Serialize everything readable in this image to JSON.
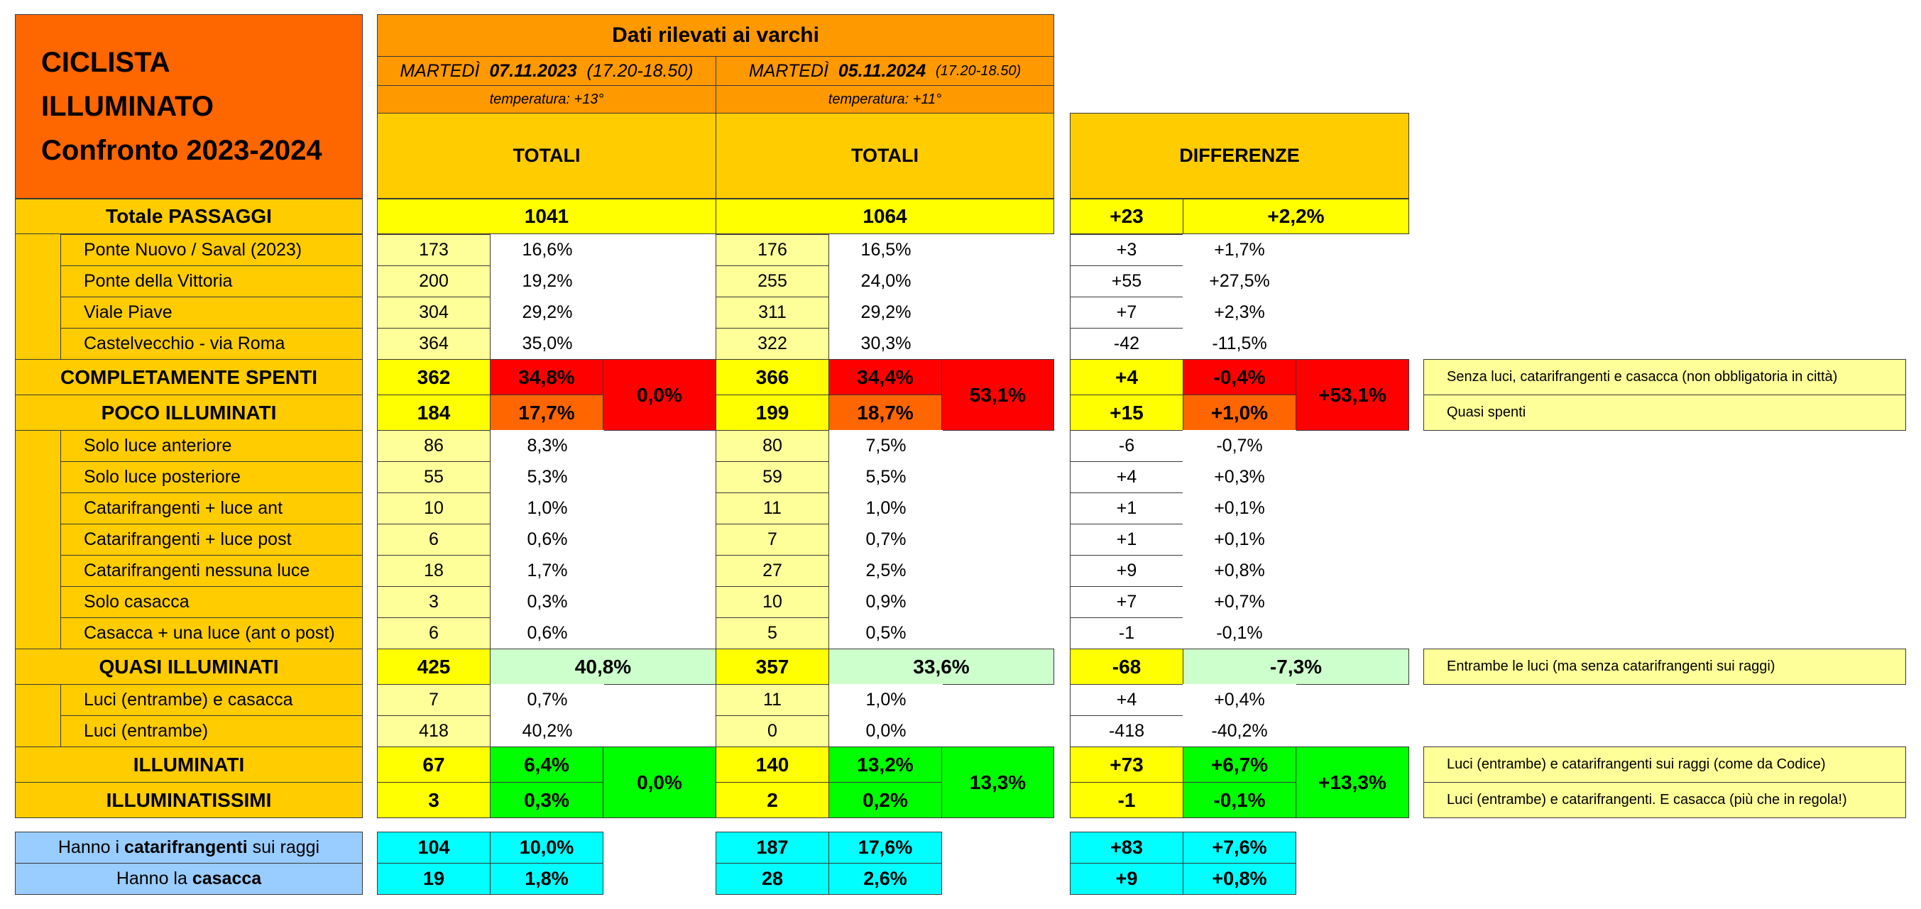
{
  "title": {
    "line1": "CICLISTA",
    "line2": "ILLUMINATO",
    "line3": "Confronto 2023-2024"
  },
  "header": {
    "main": "Dati rilevati ai varchi",
    "date2023": {
      "day": "MARTEDÌ",
      "date": "07.11.2023",
      "time": "(17.20-18.50)"
    },
    "date2024": {
      "day": "MARTEDÌ",
      "date": "05.11.2024",
      "time": "(17.20-18.50)"
    },
    "temp2023": "temperatura: +13°",
    "temp2024": "temperatura: +11°",
    "totali2023": "TOTALI",
    "totali2024": "TOTALI",
    "differenze": "DIFFERENZE"
  },
  "totale_passaggi": {
    "label": "Totale PASSAGGI",
    "v2023": "1041",
    "v2024": "1064",
    "dn": "+23",
    "dp": "+2,2%"
  },
  "varchi": [
    {
      "label": "Ponte Nuovo / Saval (2023)",
      "n2023": "173",
      "p2023": "16,6%",
      "n2024": "176",
      "p2024": "16,5%",
      "dn": "+3",
      "dp": "+1,7%"
    },
    {
      "label": "Ponte della Vittoria",
      "n2023": "200",
      "p2023": "19,2%",
      "n2024": "255",
      "p2024": "24,0%",
      "dn": "+55",
      "dp": "+27,5%"
    },
    {
      "label": "Viale Piave",
      "n2023": "304",
      "p2023": "29,2%",
      "n2024": "311",
      "p2024": "29,2%",
      "dn": "+7",
      "dp": "+2,3%"
    },
    {
      "label": "Castelvecchio - via Roma",
      "n2023": "364",
      "p2023": "35,0%",
      "n2024": "322",
      "p2024": "30,3%",
      "dn": "-42",
      "dp": "-11,5%"
    }
  ],
  "spenti": {
    "label": "COMPLETAMENTE SPENTI",
    "n2023": "362",
    "p2023": "34,8%",
    "n2024": "366",
    "p2024": "34,4%",
    "dn": "+4",
    "dp": "-0,4%",
    "note": "Senza luci, catarifrangenti e casacca (non obbligatoria in città)"
  },
  "poco": {
    "label": "POCO ILLUMINATI",
    "n2023": "184",
    "p2023": "17,7%",
    "n2024": "199",
    "p2024": "18,7%",
    "dn": "+15",
    "dp": "+1,0%",
    "note": "Quasi spenti"
  },
  "merged_top": {
    "v2023": "0,0%",
    "v2024": "53,1%",
    "diff": "+53,1%"
  },
  "poco_sub": [
    {
      "label": "Solo luce anteriore",
      "n2023": "86",
      "p2023": "8,3%",
      "n2024": "80",
      "p2024": "7,5%",
      "dn": "-6",
      "dp": "-0,7%"
    },
    {
      "label": "Solo luce posteriore",
      "n2023": "55",
      "p2023": "5,3%",
      "n2024": "59",
      "p2024": "5,5%",
      "dn": "+4",
      "dp": "+0,3%"
    },
    {
      "label": "Catarifrangenti + luce ant",
      "n2023": "10",
      "p2023": "1,0%",
      "n2024": "11",
      "p2024": "1,0%",
      "dn": "+1",
      "dp": "+0,1%"
    },
    {
      "label": "Catarifrangenti + luce post",
      "n2023": "6",
      "p2023": "0,6%",
      "n2024": "7",
      "p2024": "0,7%",
      "dn": "+1",
      "dp": "+0,1%"
    },
    {
      "label": "Catarifrangenti nessuna luce",
      "n2023": "18",
      "p2023": "1,7%",
      "n2024": "27",
      "p2024": "2,5%",
      "dn": "+9",
      "dp": "+0,8%"
    },
    {
      "label": "Solo casacca",
      "n2023": "3",
      "p2023": "0,3%",
      "n2024": "10",
      "p2024": "0,9%",
      "dn": "+7",
      "dp": "+0,7%"
    },
    {
      "label": "Casacca + una luce (ant o post)",
      "n2023": "6",
      "p2023": "0,6%",
      "n2024": "5",
      "p2024": "0,5%",
      "dn": "-1",
      "dp": "-0,1%"
    }
  ],
  "quasi": {
    "label": "QUASI ILLUMINATI",
    "n2023": "425",
    "p2023": "40,8%",
    "n2024": "357",
    "p2024": "33,6%",
    "dn": "-68",
    "dp": "-7,3%",
    "note": "Entrambe le luci (ma senza catarifrangenti sui raggi)"
  },
  "quasi_sub": [
    {
      "label": "Luci (entrambe) e casacca",
      "n2023": "7",
      "p2023": "0,7%",
      "n2024": "11",
      "p2024": "1,0%",
      "dn": "+4",
      "dp": "+0,4%"
    },
    {
      "label": "Luci (entrambe)",
      "n2023": "418",
      "p2023": "40,2%",
      "n2024": "0",
      "p2024": "0,0%",
      "dn": "-418",
      "dp": "-40,2%"
    }
  ],
  "illuminati": {
    "label": "ILLUMINATI",
    "n2023": "67",
    "p2023": "6,4%",
    "n2024": "140",
    "p2024": "13,2%",
    "dn": "+73",
    "dp": "+6,7%",
    "note": "Luci (entrambe) e catarifrangenti sui raggi (come da Codice)"
  },
  "illuminatissimi": {
    "label": "ILLUMINATISSIMI",
    "n2023": "3",
    "p2023": "0,3%",
    "n2024": "2",
    "p2024": "0,2%",
    "dn": "-1",
    "dp": "-0,1%",
    "note": "Luci (entrambe) e catarifrangenti. E casacca (più che in regola!)"
  },
  "merged_bottom": {
    "v2023": "0,0%",
    "v2024": "13,3%",
    "diff": "+13,3%"
  },
  "extra": [
    {
      "pre": "Hanno i ",
      "bold": "catarifrangenti",
      "post": " sui raggi",
      "n2023": "104",
      "p2023": "10,0%",
      "n2024": "187",
      "p2024": "17,6%",
      "dn": "+83",
      "dp": "+7,6%"
    },
    {
      "pre": "Hanno la ",
      "bold": "casacca",
      "post": "",
      "n2023": "19",
      "p2023": "1,8%",
      "n2024": "28",
      "p2024": "2,6%",
      "dn": "+9",
      "dp": "+0,8%"
    }
  ],
  "colors": {
    "title_bg": "#fe6600",
    "header_bg": "#ff9900",
    "label_bg": "#ffcc00",
    "total_bg": "#ffff00",
    "count_bg": "#ffff99",
    "spenti_bg": "#ff0000",
    "poco_bg": "#ff6600",
    "quasi_bg": "#ccffcc",
    "green_bg": "#00ff00",
    "extra_label_bg": "#99ccff",
    "extra_val_bg": "#00ffff"
  }
}
